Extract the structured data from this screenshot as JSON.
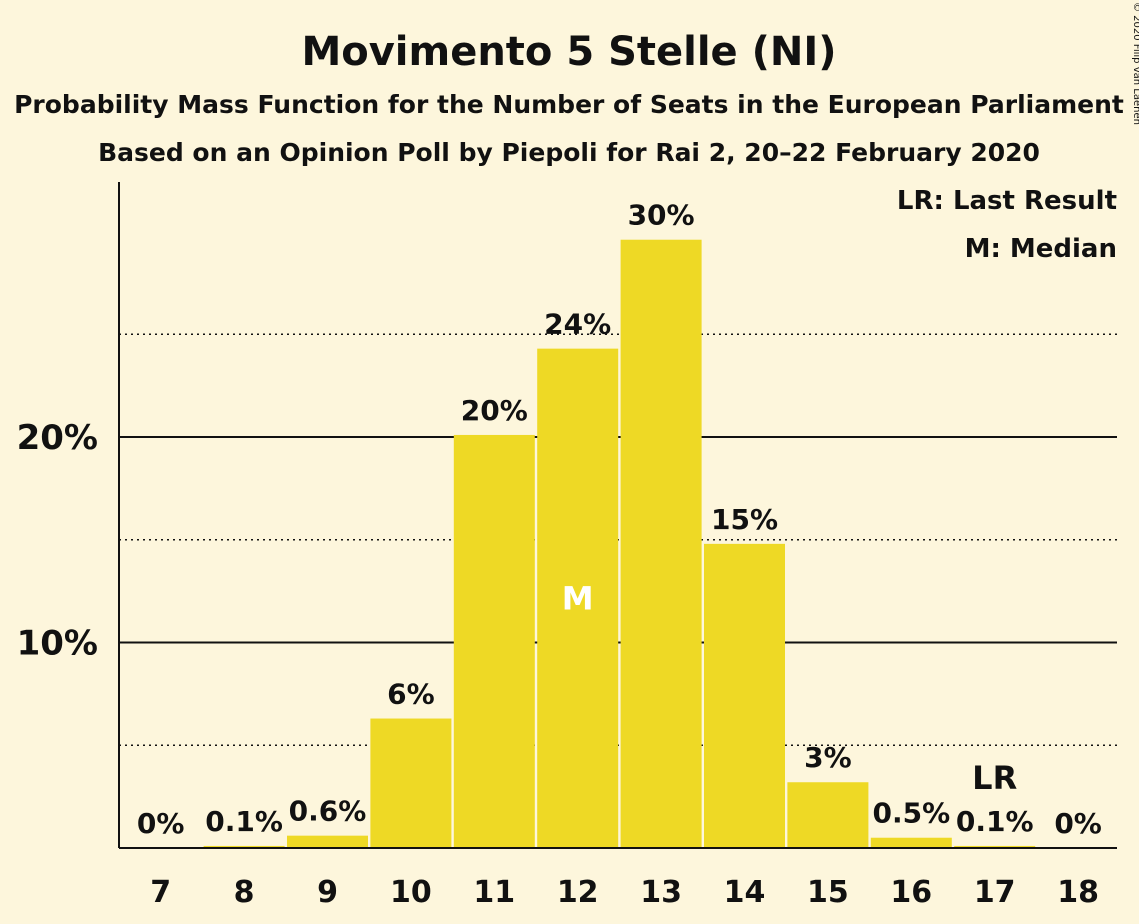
{
  "title": "Movimento 5 Stelle (NI)",
  "subtitle1": "Probability Mass Function for the Number of Seats in the European Parliament",
  "subtitle2": "Based on an Opinion Poll by Piepoli for Rai 2, 20–22 February 2020",
  "copyright": "© 2020 Filip van Laenen",
  "legend": {
    "lr": "LR: Last Result",
    "m": "M: Median"
  },
  "colors": {
    "bar": "#eed925",
    "background": "#fdf6dc",
    "axis": "#111111"
  },
  "chart_data": {
    "type": "bar",
    "categories": [
      "7",
      "8",
      "9",
      "10",
      "11",
      "12",
      "13",
      "14",
      "15",
      "16",
      "17",
      "18"
    ],
    "values": [
      0,
      0.1,
      0.6,
      6.3,
      20.1,
      24.3,
      29.6,
      14.8,
      3.2,
      0.5,
      0.1,
      0
    ],
    "labels": [
      "0%",
      "0.1%",
      "0.6%",
      "6%",
      "20%",
      "24%",
      "30%",
      "15%",
      "3%",
      "0.5%",
      "0.1%",
      "0%"
    ],
    "ylim": [
      0,
      32.5
    ],
    "yticks": [
      {
        "value": 10,
        "label": "10%"
      },
      {
        "value": 20,
        "label": "20%"
      }
    ],
    "dotted_gridlines": [
      5,
      15,
      25
    ],
    "median": {
      "category": "12",
      "label": "M"
    },
    "last_result": {
      "category": "17",
      "label": "LR"
    }
  }
}
